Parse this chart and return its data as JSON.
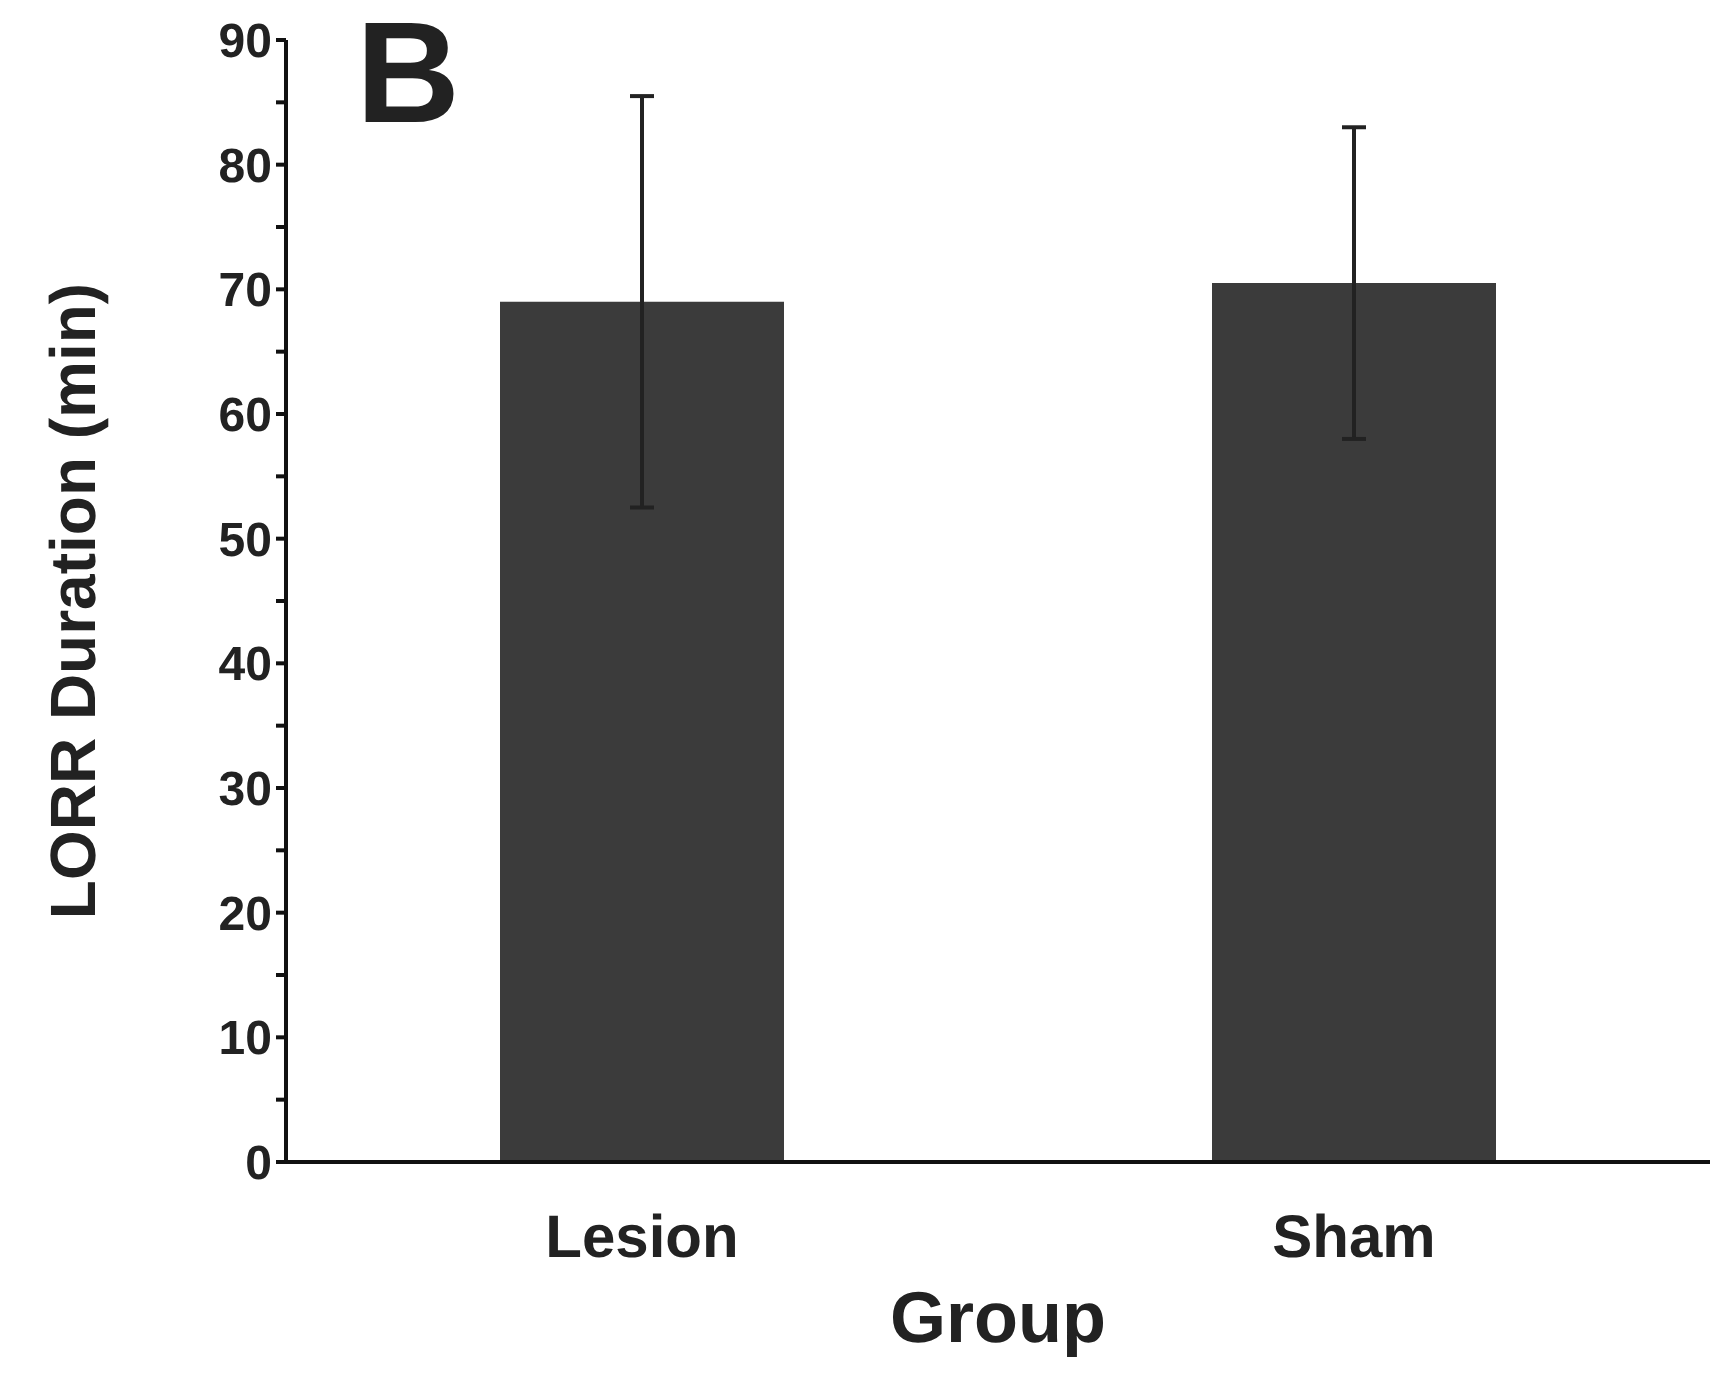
{
  "chart_data": {
    "type": "bar",
    "xlabel": "Group",
    "ylabel": "LORR Duration (min)",
    "annotations": [
      "B"
    ],
    "categories": [
      "Lesion",
      "Sham"
    ],
    "values": [
      69,
      70.5
    ],
    "errors": [
      16.5,
      12.5
    ],
    "color": "#3b3b3b",
    "ylim": [
      0,
      90
    ],
    "yticks": [
      0,
      {
        "value": 5,
        "label": null
      },
      10,
      {
        "value": 15,
        "label": null
      },
      20,
      {
        "value": 25,
        "label": null
      },
      30,
      {
        "value": 35,
        "label": null
      },
      40,
      {
        "value": 45,
        "label": null
      },
      50,
      {
        "value": 55,
        "label": null
      },
      60,
      {
        "value": 65,
        "label": null
      },
      70,
      {
        "value": 75,
        "label": null
      },
      80,
      {
        "value": 85,
        "label": null
      },
      90
    ],
    "grid": false,
    "legend": false
  }
}
